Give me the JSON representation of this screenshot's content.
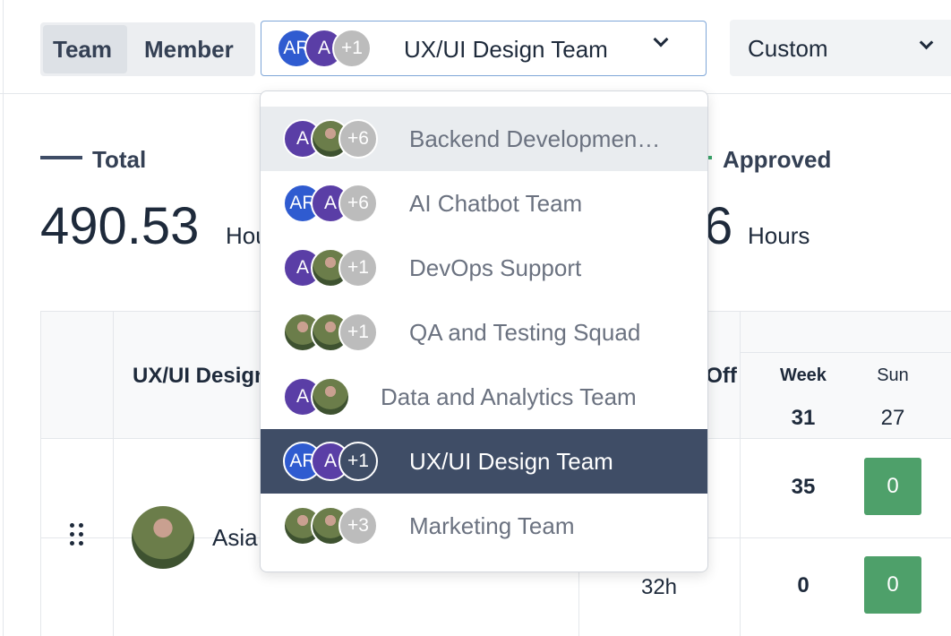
{
  "tabs": [
    "Team",
    "Member"
  ],
  "team_select": {
    "avatars": [
      "AR",
      "A",
      "+1"
    ],
    "label": "UX/UI Design Team"
  },
  "period": "Custom",
  "summary": [
    {
      "label": "Total",
      "value": "490.53",
      "unit": "Hours"
    },
    {
      "label": "Approved",
      "value": "6",
      "unit": "Hours"
    }
  ],
  "table": {
    "headers": [
      "UX/UI Design Team",
      "Time Off",
      "Week",
      "Sun"
    ],
    "header_values": [
      "31",
      "27"
    ],
    "rows": [
      {
        "name": "Asia",
        "week": "35",
        "sun": "0"
      },
      {
        "time_off": "32h",
        "week": "0",
        "sun": "0"
      }
    ]
  },
  "dropdown": {
    "items": [
      {
        "avatars": [
          "A",
          null,
          "+6"
        ],
        "label": "Backend Developmen…"
      },
      {
        "avatars": [
          "AR",
          "A",
          "+6"
        ],
        "label": "AI Chatbot Team"
      },
      {
        "avatars": [
          "A",
          null,
          "+1"
        ],
        "label": "DevOps Support"
      },
      {
        "avatars": [
          null,
          null,
          "+1"
        ],
        "label": "QA and Testing Squad"
      },
      {
        "avatars": [
          "A",
          null
        ],
        "label": "Data and Analytics Team"
      },
      {
        "avatars": [
          "AR",
          "A",
          "+1"
        ],
        "label": "UX/UI Design Team"
      },
      {
        "avatars": [
          null,
          null,
          "+3"
        ],
        "label": "Marketing Team"
      }
    ]
  }
}
